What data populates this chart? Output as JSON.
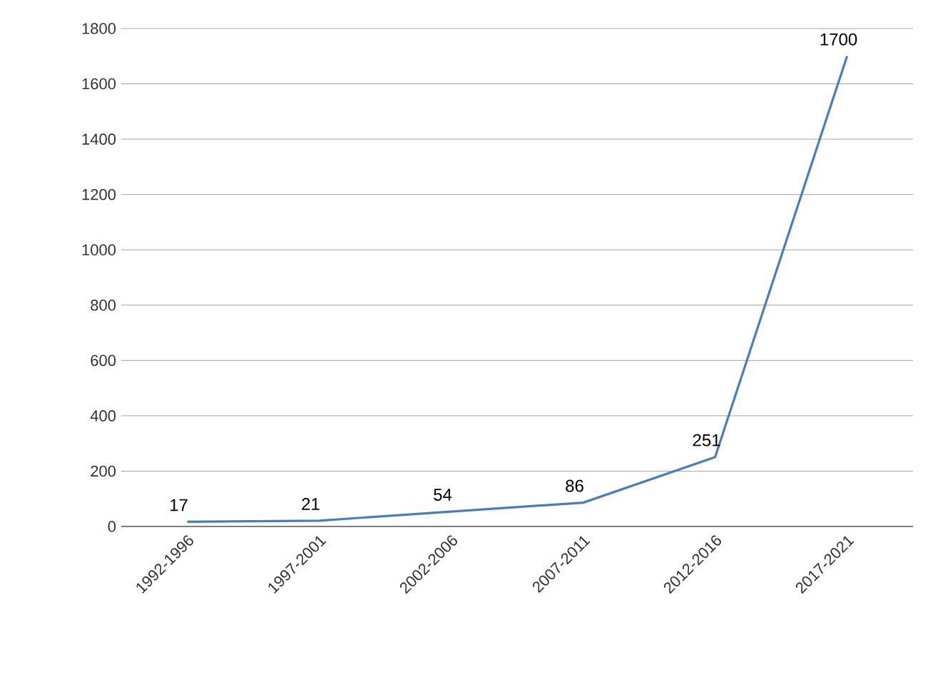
{
  "chart_data": {
    "type": "line",
    "categories": [
      "1992-1996",
      "1997-2001",
      "2002-2006",
      "2007-2011",
      "2012-2016",
      "2017-2021"
    ],
    "values": [
      17,
      21,
      54,
      86,
      251,
      1700
    ],
    "color": "#4a7ebb",
    "ylim": [
      0,
      1800
    ],
    "yticks": [
      0,
      200,
      400,
      600,
      800,
      1000,
      1200,
      1400,
      1600,
      1800
    ],
    "grid": "y",
    "data_labels": true
  }
}
